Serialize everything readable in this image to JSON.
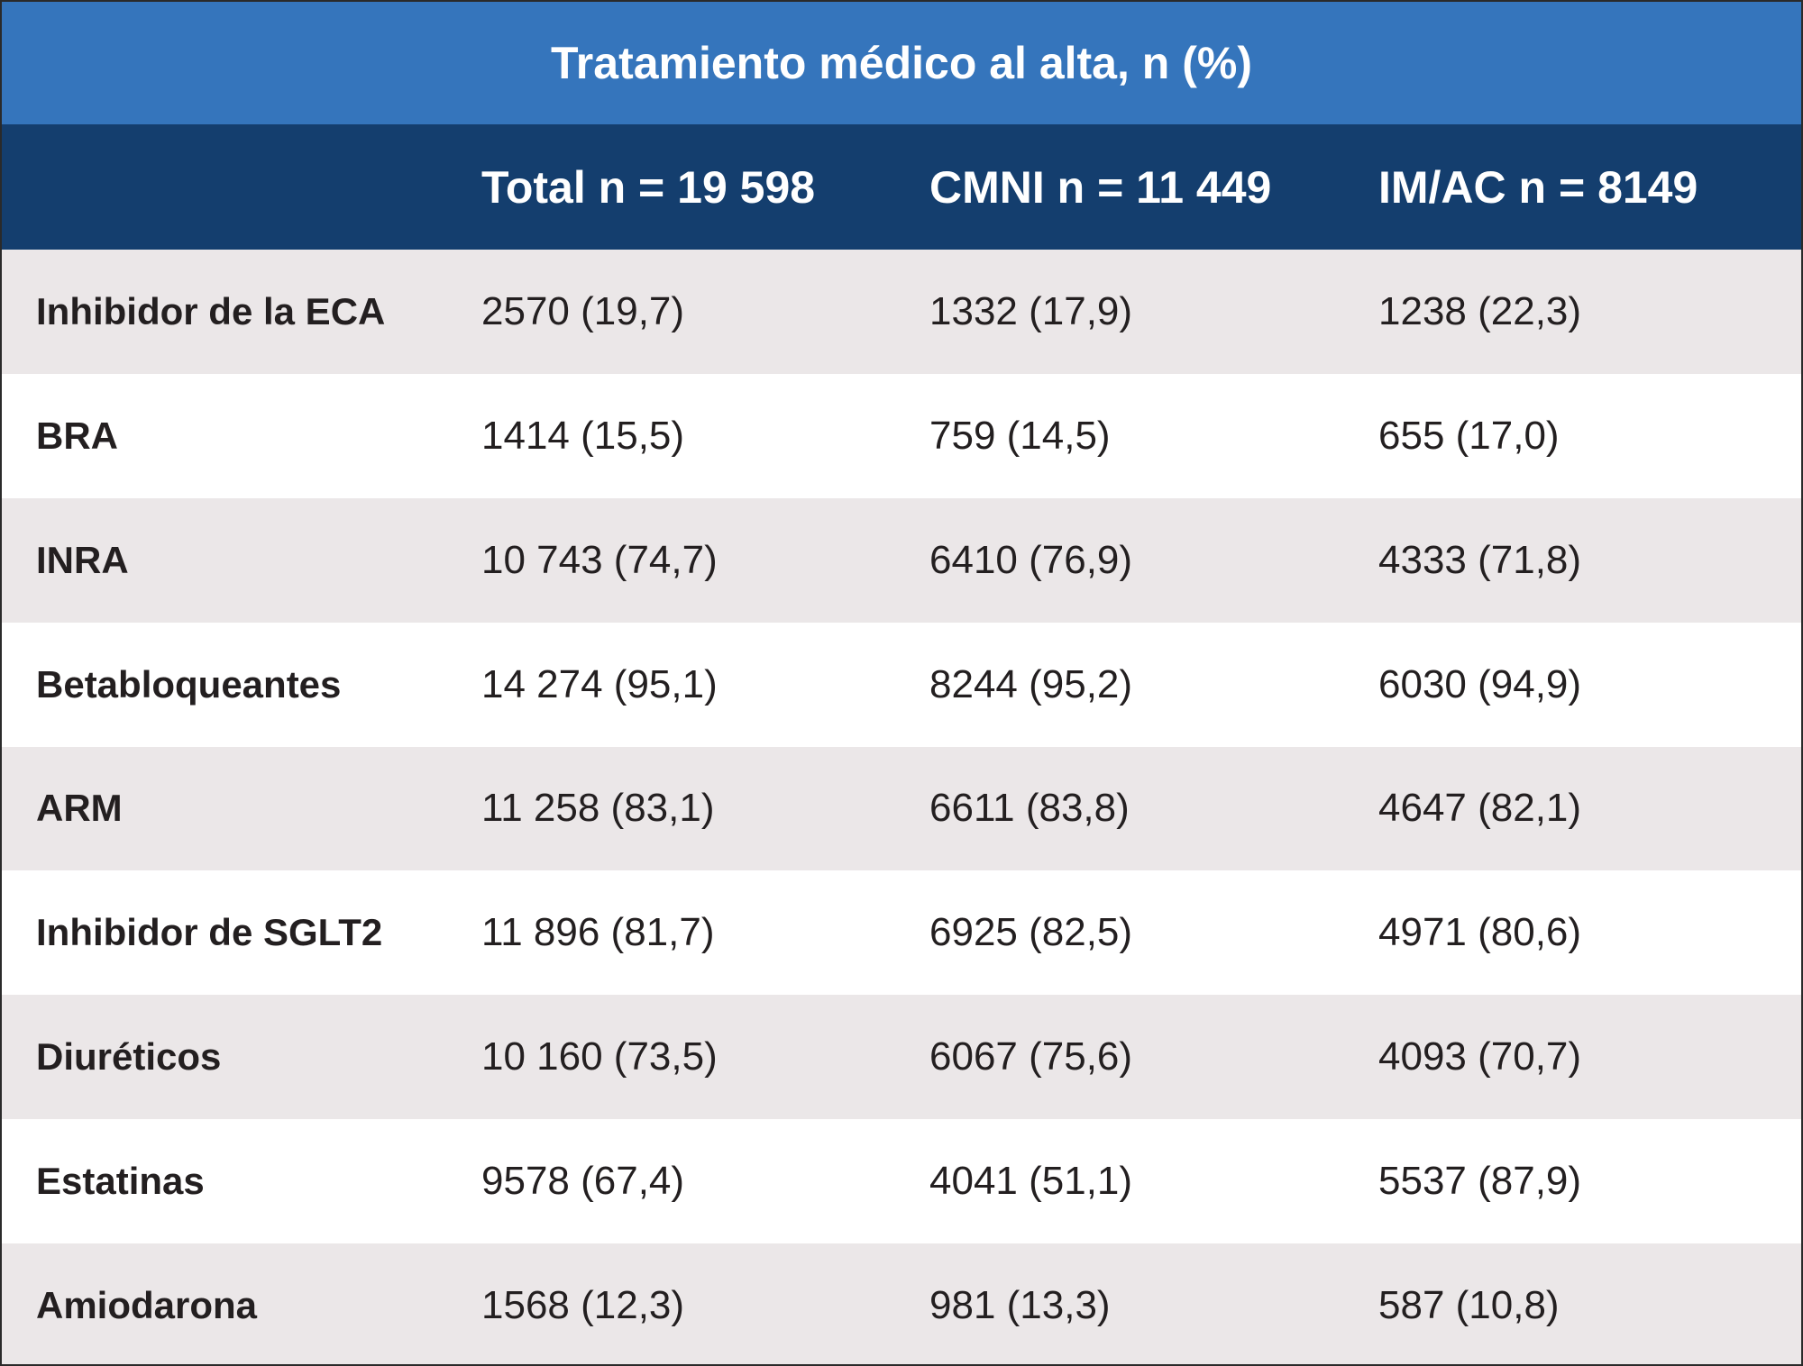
{
  "title": "Tratamiento médico al alta, n (%)",
  "table": {
    "columns": [
      "Total n = 19 598",
      "CMNI n = 11 449",
      "IM/AC n = 8149"
    ],
    "rows": [
      [
        "Inhibidor de la ECA",
        "2570 (19,7)",
        "1332 (17,9)",
        "1238 (22,3)"
      ],
      [
        "BRA",
        "1414 (15,5)",
        "759 (14,5)",
        "655 (17,0)"
      ],
      [
        "INRA",
        "10 743 (74,7)",
        "6410 (76,9)",
        "4333 (71,8)"
      ],
      [
        "Betabloqueantes",
        "14 274 (95,1)",
        "8244 (95,2)",
        "6030 (94,9)"
      ],
      [
        "ARM",
        "11 258 (83,1)",
        "6611 (83,8)",
        "4647 (82,1)"
      ],
      [
        "Inhibidor de SGLT2",
        "11 896 (81,7)",
        "6925 (82,5)",
        "4971 (80,6)"
      ],
      [
        "Diuréticos",
        "10 160 (73,5)",
        "6067 (75,6)",
        "4093 (70,7)"
      ],
      [
        "Estatinas",
        "9578 (67,4)",
        "4041 (51,1)",
        "5537 (87,9)"
      ],
      [
        "Amiodarona",
        "1568 (12,3)",
        "981 (13,3)",
        "587 (10,8)"
      ]
    ]
  }
}
